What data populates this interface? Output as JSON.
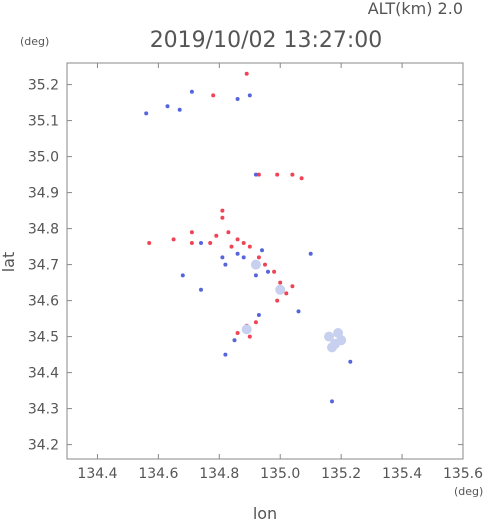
{
  "header": {
    "altitude_label": "ALT(km) 2.0",
    "timestamp": "2019/10/02 13:27:00",
    "y_unit": "(deg)",
    "x_unit": "(deg)"
  },
  "chart_data": {
    "type": "scatter",
    "xlabel": "lon",
    "ylabel": "lat",
    "xlim": [
      134.3,
      135.6
    ],
    "ylim": [
      34.16,
      35.26
    ],
    "x_ticks": [
      134.4,
      134.6,
      134.8,
      135.0,
      135.2,
      135.4,
      135.6
    ],
    "x_tick_labels": [
      "134.4",
      "134.6",
      "134.8",
      "135.0",
      "135.2",
      "135.4",
      "135.6"
    ],
    "y_ticks": [
      34.2,
      34.3,
      34.4,
      34.5,
      34.6,
      34.7,
      34.8,
      34.9,
      35.0,
      35.1,
      35.2
    ],
    "y_tick_labels": [
      "34.2",
      "34.3",
      "34.4",
      "34.5",
      "34.6",
      "34.7",
      "34.8",
      "34.9",
      "35.0",
      "35.1",
      "35.2"
    ],
    "grid": false,
    "colors": {
      "red": "#ee4455",
      "blue": "#5566dd",
      "light": "#c8d0f0"
    },
    "series": [
      {
        "color": "red",
        "points": [
          [
            134.57,
            34.76
          ],
          [
            134.65,
            34.77
          ],
          [
            134.71,
            34.76
          ],
          [
            134.77,
            34.76
          ],
          [
            134.79,
            34.78
          ],
          [
            134.81,
            34.83
          ],
          [
            134.81,
            34.85
          ],
          [
            134.83,
            34.79
          ],
          [
            134.84,
            34.75
          ],
          [
            134.86,
            34.77
          ],
          [
            134.88,
            34.76
          ],
          [
            134.9,
            34.75
          ],
          [
            134.93,
            34.72
          ],
          [
            134.95,
            34.7
          ],
          [
            134.98,
            34.68
          ],
          [
            135.0,
            34.65
          ],
          [
            135.02,
            34.62
          ],
          [
            135.04,
            34.64
          ],
          [
            134.99,
            34.6
          ],
          [
            134.89,
            34.53
          ],
          [
            134.92,
            34.54
          ],
          [
            134.9,
            34.5
          ],
          [
            134.86,
            34.51
          ],
          [
            134.93,
            34.95
          ],
          [
            134.99,
            34.95
          ],
          [
            135.04,
            34.95
          ],
          [
            135.07,
            34.94
          ],
          [
            134.71,
            34.79
          ],
          [
            134.78,
            35.17
          ],
          [
            134.89,
            35.23
          ]
        ]
      },
      {
        "color": "blue",
        "points": [
          [
            134.56,
            35.12
          ],
          [
            134.71,
            35.18
          ],
          [
            134.63,
            35.14
          ],
          [
            134.67,
            35.13
          ],
          [
            134.86,
            35.16
          ],
          [
            134.9,
            35.17
          ],
          [
            134.92,
            34.95
          ],
          [
            134.74,
            34.76
          ],
          [
            134.81,
            34.72
          ],
          [
            134.82,
            34.7
          ],
          [
            134.86,
            34.73
          ],
          [
            134.88,
            34.72
          ],
          [
            134.94,
            34.74
          ],
          [
            134.96,
            34.68
          ],
          [
            134.92,
            34.67
          ],
          [
            135.06,
            34.57
          ],
          [
            134.85,
            34.49
          ],
          [
            134.93,
            34.56
          ],
          [
            134.82,
            34.45
          ],
          [
            135.17,
            34.32
          ],
          [
            135.23,
            34.43
          ],
          [
            134.68,
            34.67
          ],
          [
            134.74,
            34.63
          ],
          [
            135.1,
            34.73
          ]
        ]
      },
      {
        "color": "light",
        "points": [
          [
            135.16,
            34.5
          ],
          [
            135.18,
            34.48
          ],
          [
            135.2,
            34.49
          ],
          [
            135.19,
            34.51
          ],
          [
            135.17,
            34.47
          ],
          [
            134.89,
            34.52
          ],
          [
            134.92,
            34.7
          ],
          [
            135.0,
            34.63
          ]
        ]
      }
    ]
  }
}
